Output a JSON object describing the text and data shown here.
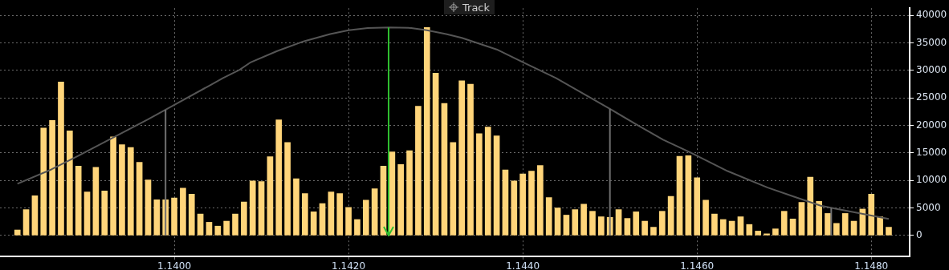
{
  "chart_data": {
    "type": "bar",
    "xlim": [
      1.138,
      1.14844
    ],
    "ylim": [
      -3800,
      41300
    ],
    "xticks": [
      {
        "value": 1.14,
        "label": "1.1400"
      },
      {
        "value": 1.142,
        "label": "1.1420"
      },
      {
        "value": 1.144,
        "label": "1.1440"
      },
      {
        "value": 1.146,
        "label": "1.1460"
      },
      {
        "value": 1.148,
        "label": "1.1480"
      }
    ],
    "yticks": [
      0,
      5000,
      10000,
      15000,
      20000,
      25000,
      30000,
      35000,
      40000
    ],
    "grid": true,
    "marker": "none",
    "annotations": [
      "Track"
    ],
    "ref_lines": [
      {
        "axis": "x",
        "value": 1.14246,
        "color": "#2fbf2f"
      },
      {
        "axis": "x",
        "value": 1.1399,
        "color": "#707070"
      },
      {
        "axis": "x",
        "value": 1.145,
        "color": "#707070"
      },
      {
        "axis": "x",
        "value": 1.14754,
        "color": "#707070"
      }
    ],
    "series": [
      {
        "color": "#ffd57a",
        "x": [
          1.1382,
          1.1383,
          1.1384,
          1.1385,
          1.1386,
          1.1387,
          1.1388,
          1.1389,
          1.139,
          1.1391,
          1.1392,
          1.1393,
          1.1394,
          1.1395,
          1.1396,
          1.1397,
          1.1398,
          1.1399,
          1.14,
          1.1401,
          1.1402,
          1.1403,
          1.1404,
          1.1405,
          1.1406,
          1.1407,
          1.1408,
          1.1409,
          1.141,
          1.1411,
          1.1412,
          1.1413,
          1.1414,
          1.1415,
          1.1416,
          1.1417,
          1.1418,
          1.1419,
          1.142,
          1.1421,
          1.1422,
          1.1423,
          1.1424,
          1.1425,
          1.1426,
          1.1427,
          1.1428,
          1.1429,
          1.143,
          1.1431,
          1.1432,
          1.1433,
          1.1434,
          1.1435,
          1.1436,
          1.1437,
          1.1438,
          1.1439,
          1.144,
          1.1441,
          1.1442,
          1.1443,
          1.1444,
          1.1445,
          1.1446,
          1.1447,
          1.1448,
          1.1449,
          1.145,
          1.1451,
          1.1452,
          1.1453,
          1.1454,
          1.1455,
          1.1456,
          1.1457,
          1.1458,
          1.1459,
          1.146,
          1.1461,
          1.1462,
          1.1463,
          1.1464,
          1.1465,
          1.1466,
          1.1467,
          1.1468,
          1.1469,
          1.147,
          1.1471,
          1.1472,
          1.1473,
          1.1474,
          1.1475,
          1.1476,
          1.1477,
          1.1478,
          1.1479,
          1.148,
          1.1481,
          1.1482
        ],
        "values": [
          1000,
          4700,
          7200,
          19500,
          20900,
          27900,
          19000,
          12600,
          7900,
          12400,
          8100,
          17900,
          16500,
          16000,
          13300,
          10100,
          6500,
          6500,
          6800,
          8600,
          7500,
          3900,
          2400,
          1700,
          2600,
          3900,
          6100,
          9900,
          9800,
          14300,
          21000,
          16900,
          10300,
          7600,
          4300,
          5800,
          7900,
          7600,
          5100,
          2900,
          6400,
          8500,
          12600,
          15200,
          12900,
          15400,
          23500,
          37800,
          29500,
          24000,
          16900,
          28100,
          27500,
          18500,
          19700,
          18100,
          11900,
          9900,
          11200,
          11700,
          12700,
          6900,
          5000,
          3700,
          4700,
          5700,
          4400,
          3400,
          3300,
          4700,
          3100,
          4300,
          2600,
          1500,
          4400,
          7100,
          14400,
          14500,
          10500,
          6400,
          3900,
          2900,
          2600,
          3400,
          2000,
          800,
          300,
          1200,
          4400,
          3000,
          6000,
          10600,
          6200,
          4000,
          2200,
          4000,
          2600,
          4800,
          7500,
          3400,
          1500
        ]
      },
      {
        "type": "line",
        "color": "#555555",
        "x": [
          1.1382,
          1.13859,
          1.1389,
          1.1393,
          1.1397,
          1.14001,
          1.1404,
          1.14056,
          1.14075,
          1.14087,
          1.14118,
          1.14149,
          1.14179,
          1.142,
          1.14222,
          1.14247,
          1.14272,
          1.1429,
          1.14312,
          1.1433,
          1.1437,
          1.14401,
          1.14438,
          1.14469,
          1.145,
          1.1453,
          1.14561,
          1.14592,
          1.14635,
          1.14681,
          1.14712,
          1.14742,
          1.14758,
          1.14788,
          1.1482
        ],
        "values": [
          9400,
          12000,
          14500,
          17800,
          21100,
          23800,
          27200,
          28600,
          30100,
          31400,
          33500,
          35300,
          36600,
          37300,
          37700,
          37800,
          37700,
          37300,
          36600,
          35900,
          33800,
          31400,
          28600,
          25800,
          23000,
          20200,
          17400,
          15100,
          11700,
          8700,
          7000,
          5400,
          4900,
          4000,
          3000
        ]
      }
    ]
  }
}
